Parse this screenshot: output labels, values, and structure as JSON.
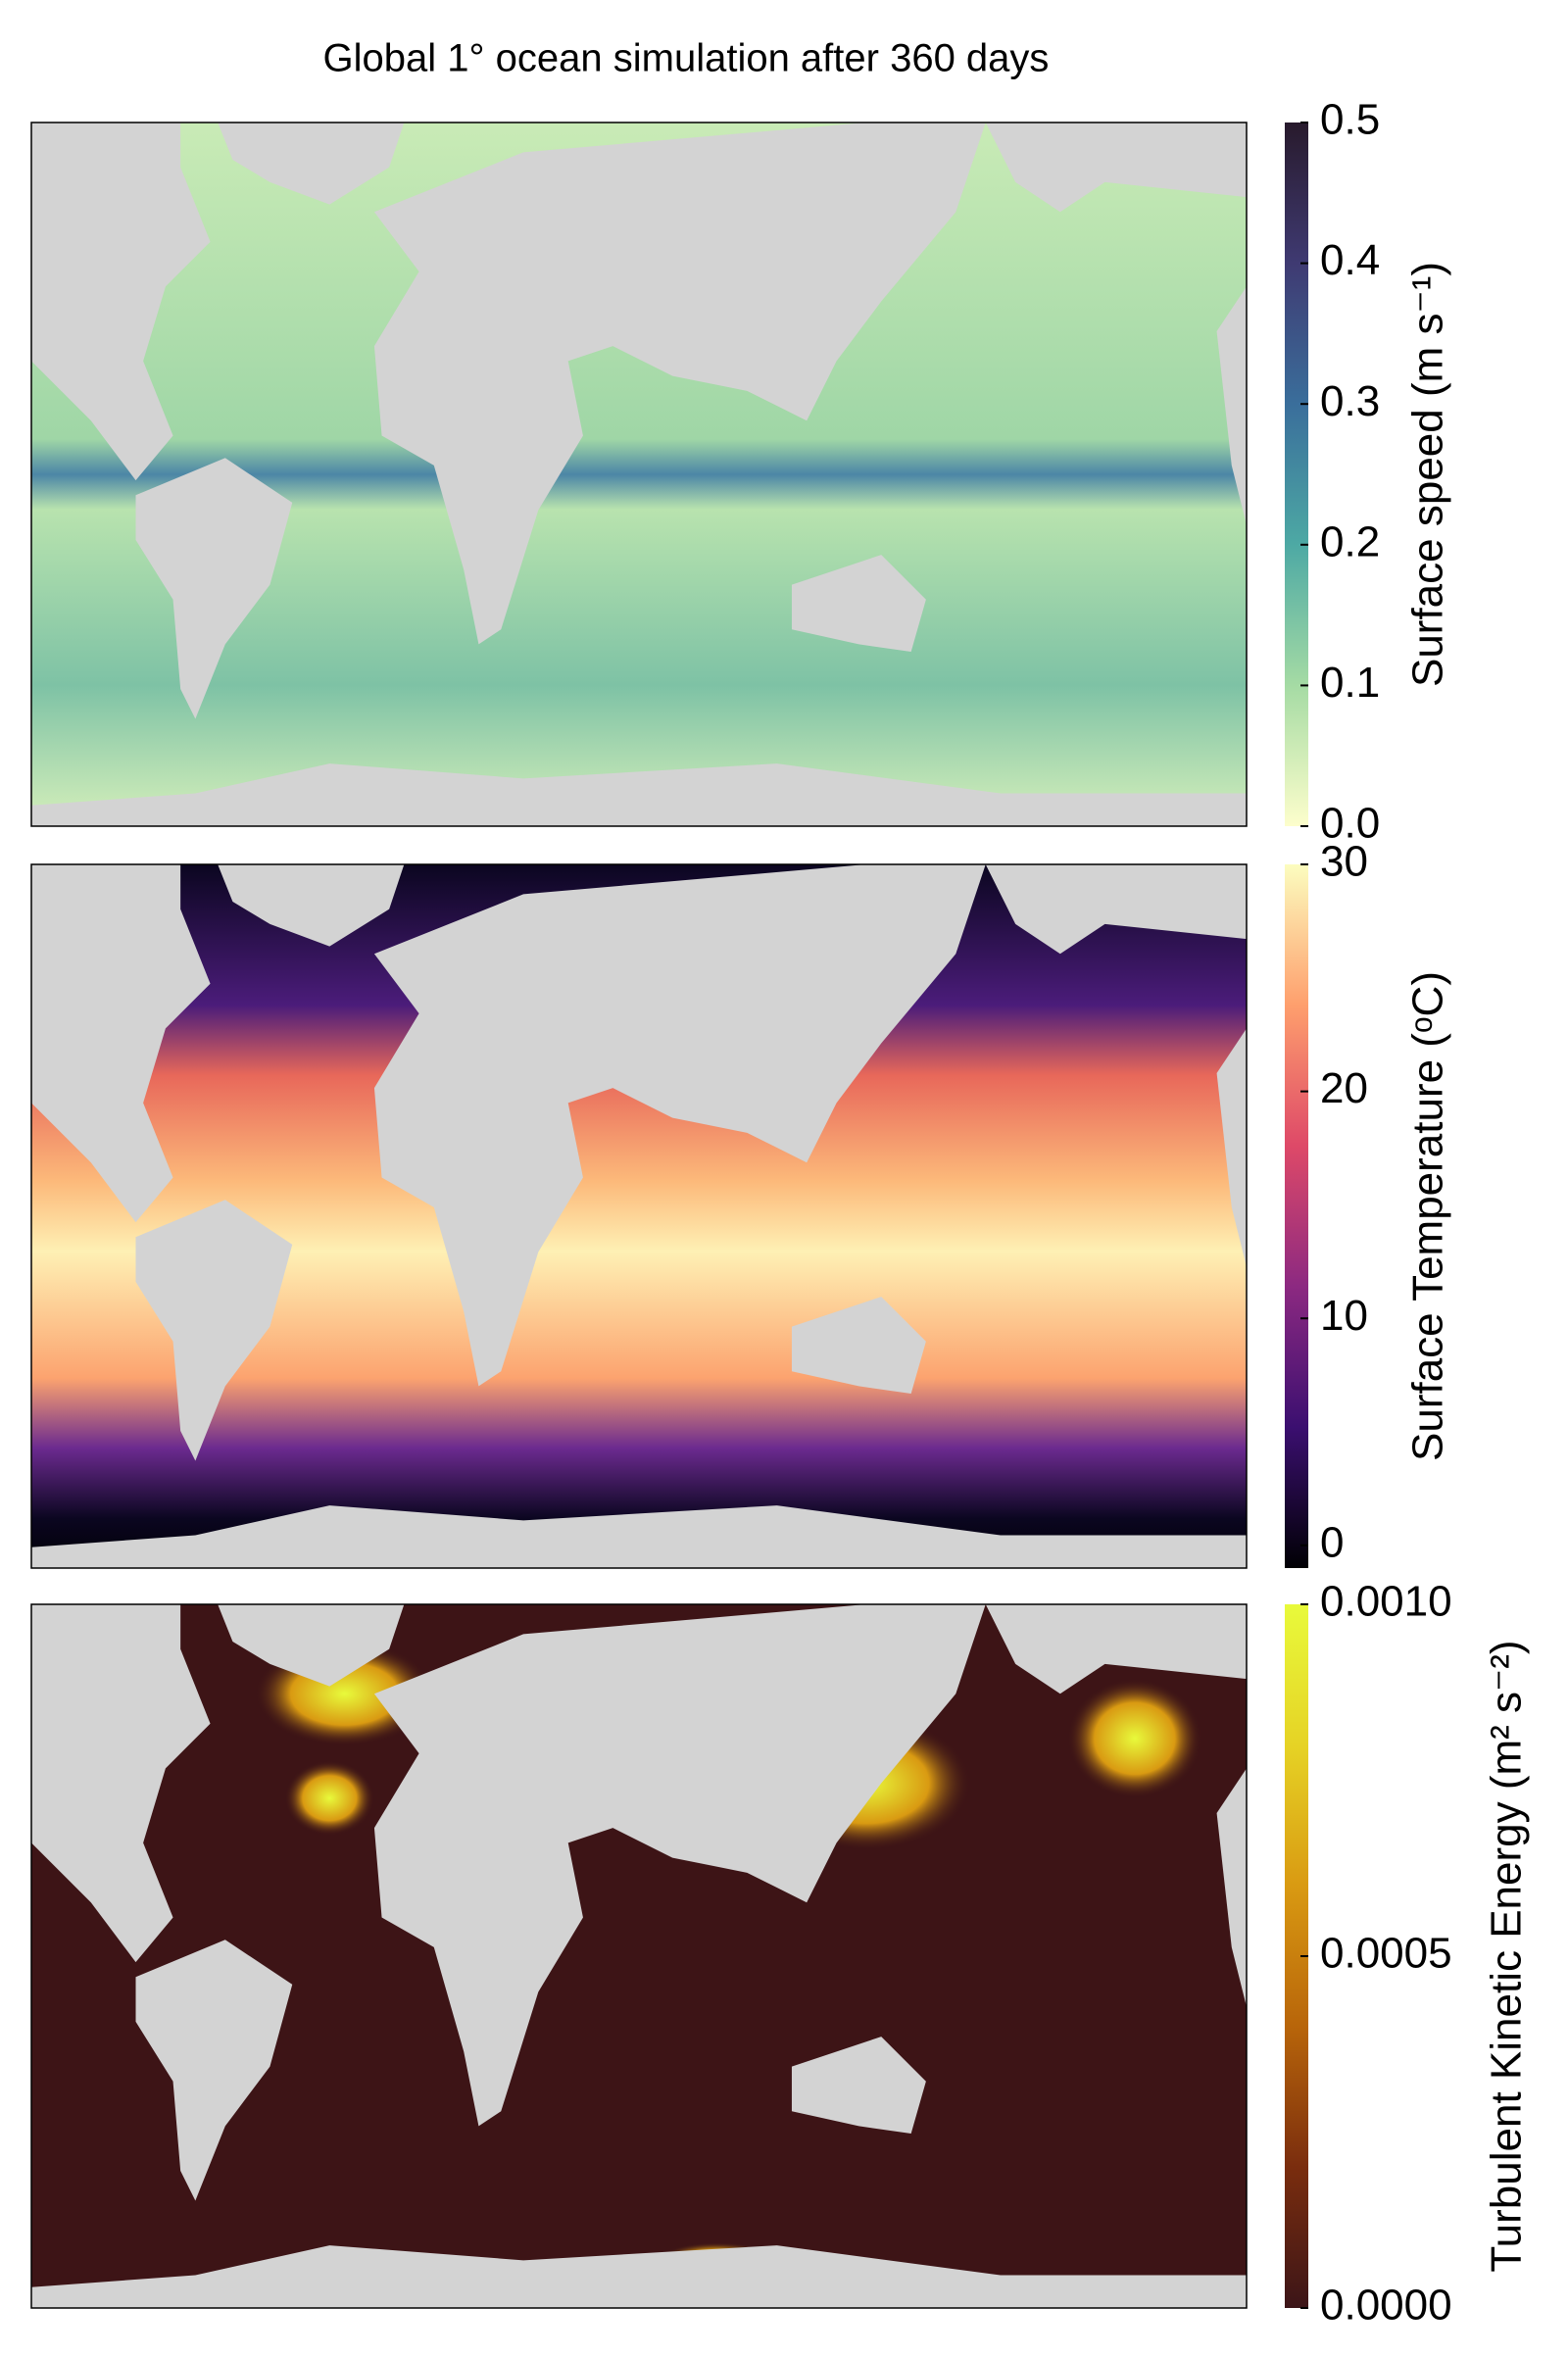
{
  "title": "Global 1° ocean simulation after 360 days",
  "chart_data": [
    {
      "type": "heatmap",
      "colorbar_label": "Surface speed (m s⁻¹)",
      "clim": [
        0,
        0.5
      ],
      "cticks": [
        {
          "value": 0,
          "label": "0.0"
        },
        0.1,
        0.2,
        0.3,
        0.4,
        0.5
      ],
      "colors": [
        "#fdfecc",
        "#a5dba4",
        "#4da9a4",
        "#3a6e9b",
        "#3f3a72",
        "#281a2c"
      ]
    },
    {
      "type": "heatmap",
      "colorbar_label": "Surface Temperature (ᵒC)",
      "clim": [
        -1,
        30
      ],
      "cticks": [
        0,
        10,
        20,
        30
      ],
      "colors": [
        "#000004",
        "#3b0f70",
        "#8c2981",
        "#de4968",
        "#fe9f6d",
        "#fcfdbf"
      ]
    },
    {
      "type": "heatmap",
      "colorbar_label": "Turbulent Kinetic Energy (m² s⁻²)",
      "clim": [
        0,
        0.001
      ],
      "cticks": [
        {
          "value": 0,
          "label": "0.0000"
        },
        0.0005,
        {
          "value": 0.001,
          "label": "0.0010"
        }
      ],
      "colors": [
        "#3c1518",
        "#7a2d0e",
        "#b8650a",
        "#d99a12",
        "#e6d325",
        "#e8fa3b"
      ]
    }
  ]
}
